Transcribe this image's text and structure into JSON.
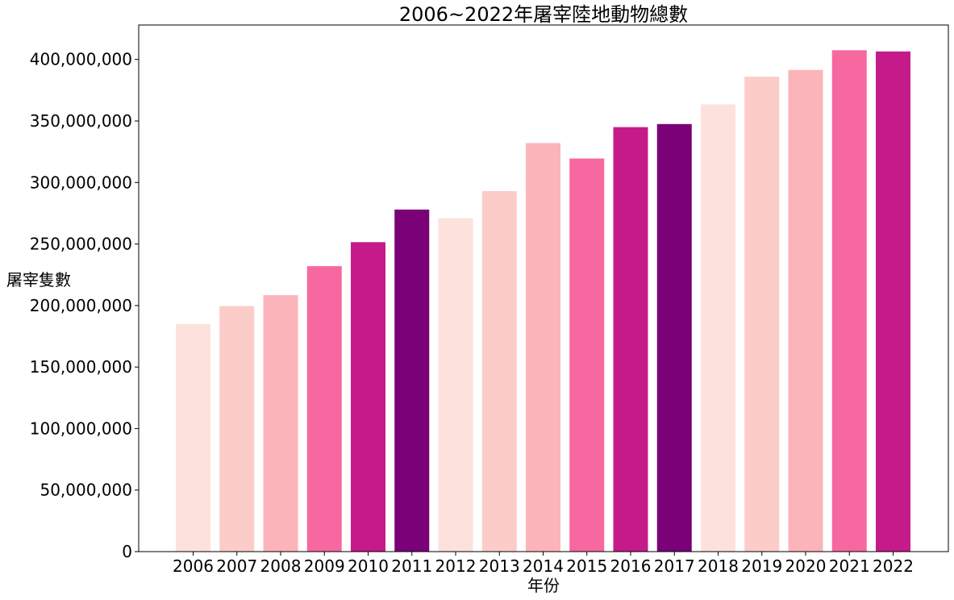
{
  "chart_data": {
    "type": "bar",
    "title": "2006~2022年屠宰陸地動物總數",
    "xlabel": "年份",
    "ylabel": "屠宰隻數",
    "categories": [
      "2006",
      "2007",
      "2008",
      "2009",
      "2010",
      "2011",
      "2012",
      "2013",
      "2014",
      "2015",
      "2016",
      "2017",
      "2018",
      "2019",
      "2020",
      "2021",
      "2022"
    ],
    "values": [
      185000000,
      199500000,
      208500000,
      232000000,
      251500000,
      278000000,
      271000000,
      293000000,
      332000000,
      319500000,
      345000000,
      347500000,
      363500000,
      386000000,
      391500000,
      407500000,
      406500000
    ],
    "colors": [
      "#fde1dd",
      "#fcccc9",
      "#fbb4b9",
      "#f768a1",
      "#c51b8a",
      "#7a0177",
      "#fde1dd",
      "#fcccc9",
      "#fbb4b9",
      "#f768a1",
      "#c51b8a",
      "#7a0177",
      "#fde1dd",
      "#fcccc9",
      "#fbb4b9",
      "#f768a1",
      "#c51b8a"
    ],
    "ylim": [
      0,
      428000000
    ],
    "yticks": [
      0,
      50000000,
      100000000,
      150000000,
      200000000,
      250000000,
      300000000,
      350000000,
      400000000
    ],
    "ytick_labels": [
      "0",
      "50,000,000",
      "100,000,000",
      "150,000,000",
      "200,000,000",
      "250,000,000",
      "300,000,000",
      "350,000,000",
      "400,000,000"
    ],
    "grid": false,
    "legend": "none"
  }
}
